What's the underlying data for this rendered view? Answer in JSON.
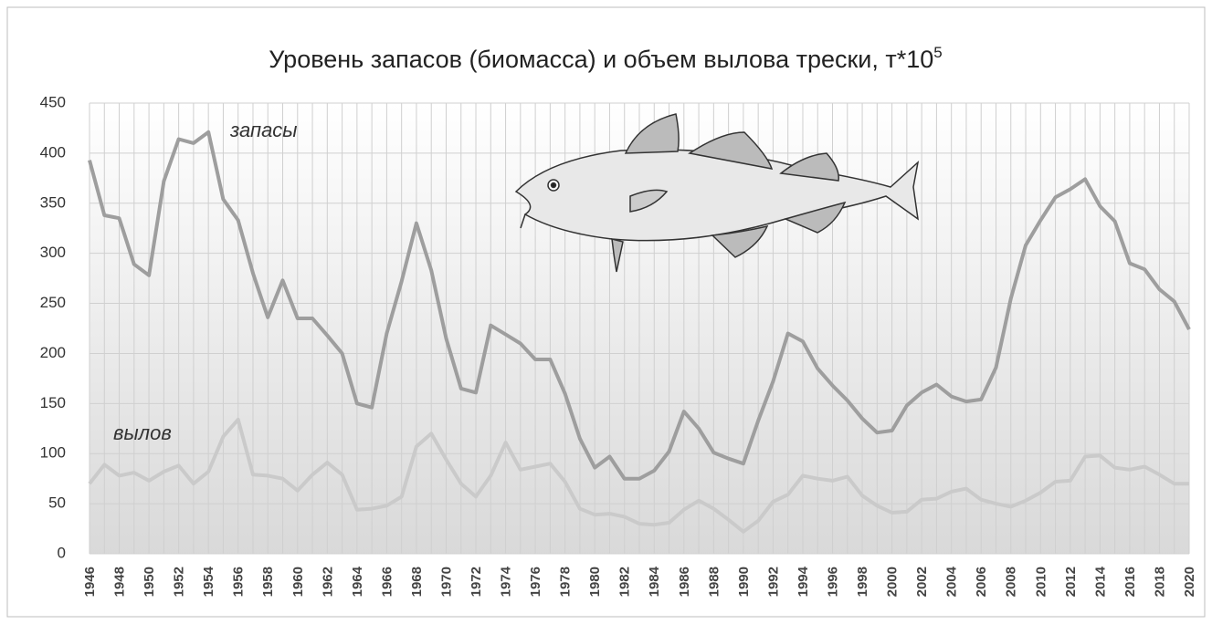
{
  "chart_data": {
    "type": "line",
    "title": "Уровень запасов (биомасса) и объем вылова трески, т*10",
    "title_exponent": "5",
    "categories": [
      1946,
      null,
      1948,
      null,
      1950,
      null,
      1952,
      null,
      1954,
      null,
      1956,
      null,
      1958,
      null,
      1960,
      null,
      1962,
      null,
      1964,
      null,
      1966,
      null,
      1968,
      null,
      1970,
      null,
      1972,
      null,
      1974,
      null,
      1976,
      null,
      1978,
      null,
      1980,
      null,
      1982,
      null,
      1984,
      null,
      1986,
      null,
      1988,
      null,
      1990,
      null,
      1992,
      null,
      1994,
      null,
      1996,
      null,
      1998,
      null,
      2000,
      null,
      2002,
      null,
      2004,
      null,
      2006,
      null,
      2008,
      null,
      2010,
      null,
      2012,
      null,
      2014,
      null,
      2016,
      null,
      2018,
      null,
      2020
    ],
    "series": [
      {
        "name": "запасы",
        "color": "#9e9e9e",
        "values": [
          393,
          338,
          335,
          289,
          278,
          372,
          414,
          410,
          421,
          354,
          333,
          280,
          236,
          273,
          235,
          235,
          218,
          200,
          150,
          146,
          220,
          272,
          330,
          283,
          215,
          165,
          161,
          228,
          219,
          210,
          194,
          194,
          160,
          115,
          86,
          97,
          75,
          75,
          83,
          102,
          142,
          125,
          101,
          95,
          90,
          133,
          172,
          220,
          212,
          185,
          168,
          153,
          135,
          121,
          123,
          148,
          161,
          169,
          157,
          152,
          154,
          186,
          255,
          308,
          333,
          356,
          364,
          374,
          347,
          332,
          290,
          284,
          264,
          252,
          224
        ]
      },
      {
        "name": "вылов",
        "color": "#cacaca",
        "values": [
          70,
          89,
          78,
          81,
          73,
          82,
          88,
          70,
          82,
          117,
          134,
          79,
          78,
          75,
          63,
          79,
          91,
          79,
          44,
          45,
          48,
          57,
          107,
          120,
          94,
          70,
          57,
          78,
          111,
          84,
          87,
          90,
          72,
          45,
          39,
          40,
          37,
          30,
          29,
          31,
          44,
          53,
          45,
          34,
          22,
          33,
          52,
          59,
          78,
          75,
          73,
          77,
          58,
          48,
          41,
          42,
          54,
          55,
          62,
          65,
          54,
          50,
          47,
          53,
          61,
          72,
          73,
          97,
          98,
          86,
          84,
          87,
          79,
          70,
          70
        ]
      }
    ],
    "ylim": [
      0,
      450
    ],
    "yticks": [
      0,
      50,
      100,
      150,
      200,
      250,
      300,
      350,
      400,
      450
    ],
    "grid": true
  }
}
